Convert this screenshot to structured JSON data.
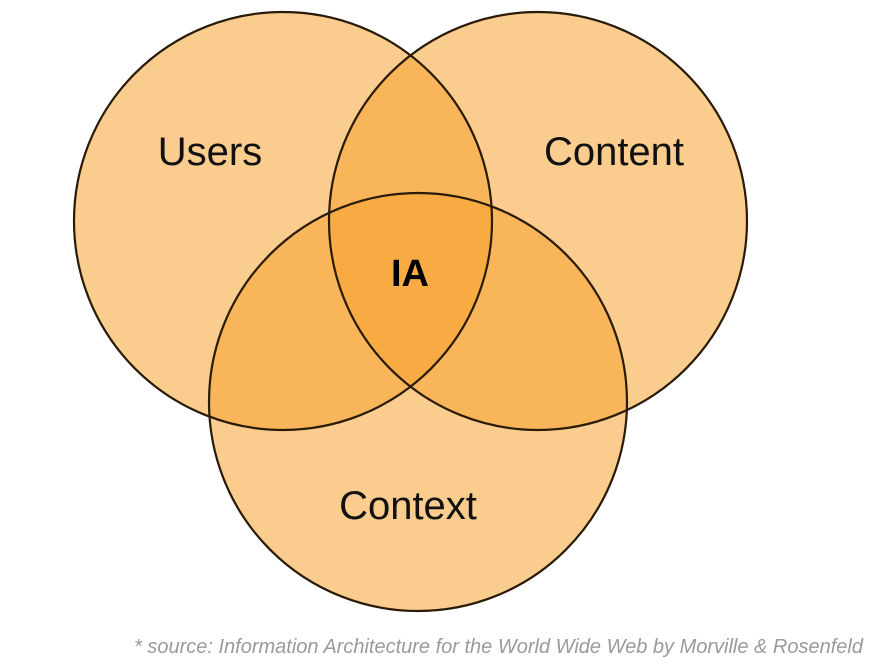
{
  "diagram": {
    "type": "venn",
    "sets": [
      {
        "id": "users",
        "label": "Users"
      },
      {
        "id": "content",
        "label": "Content"
      },
      {
        "id": "context",
        "label": "Context"
      }
    ],
    "intersection_label": "IA",
    "colors": {
      "circle_fill": "#f6a330",
      "outline": "#2a1a08",
      "label_text": "#111111",
      "source_text": "#9a9a9a"
    }
  },
  "source_note": "* source: Information Architecture for the World Wide Web by Morville & Rosenfeld"
}
